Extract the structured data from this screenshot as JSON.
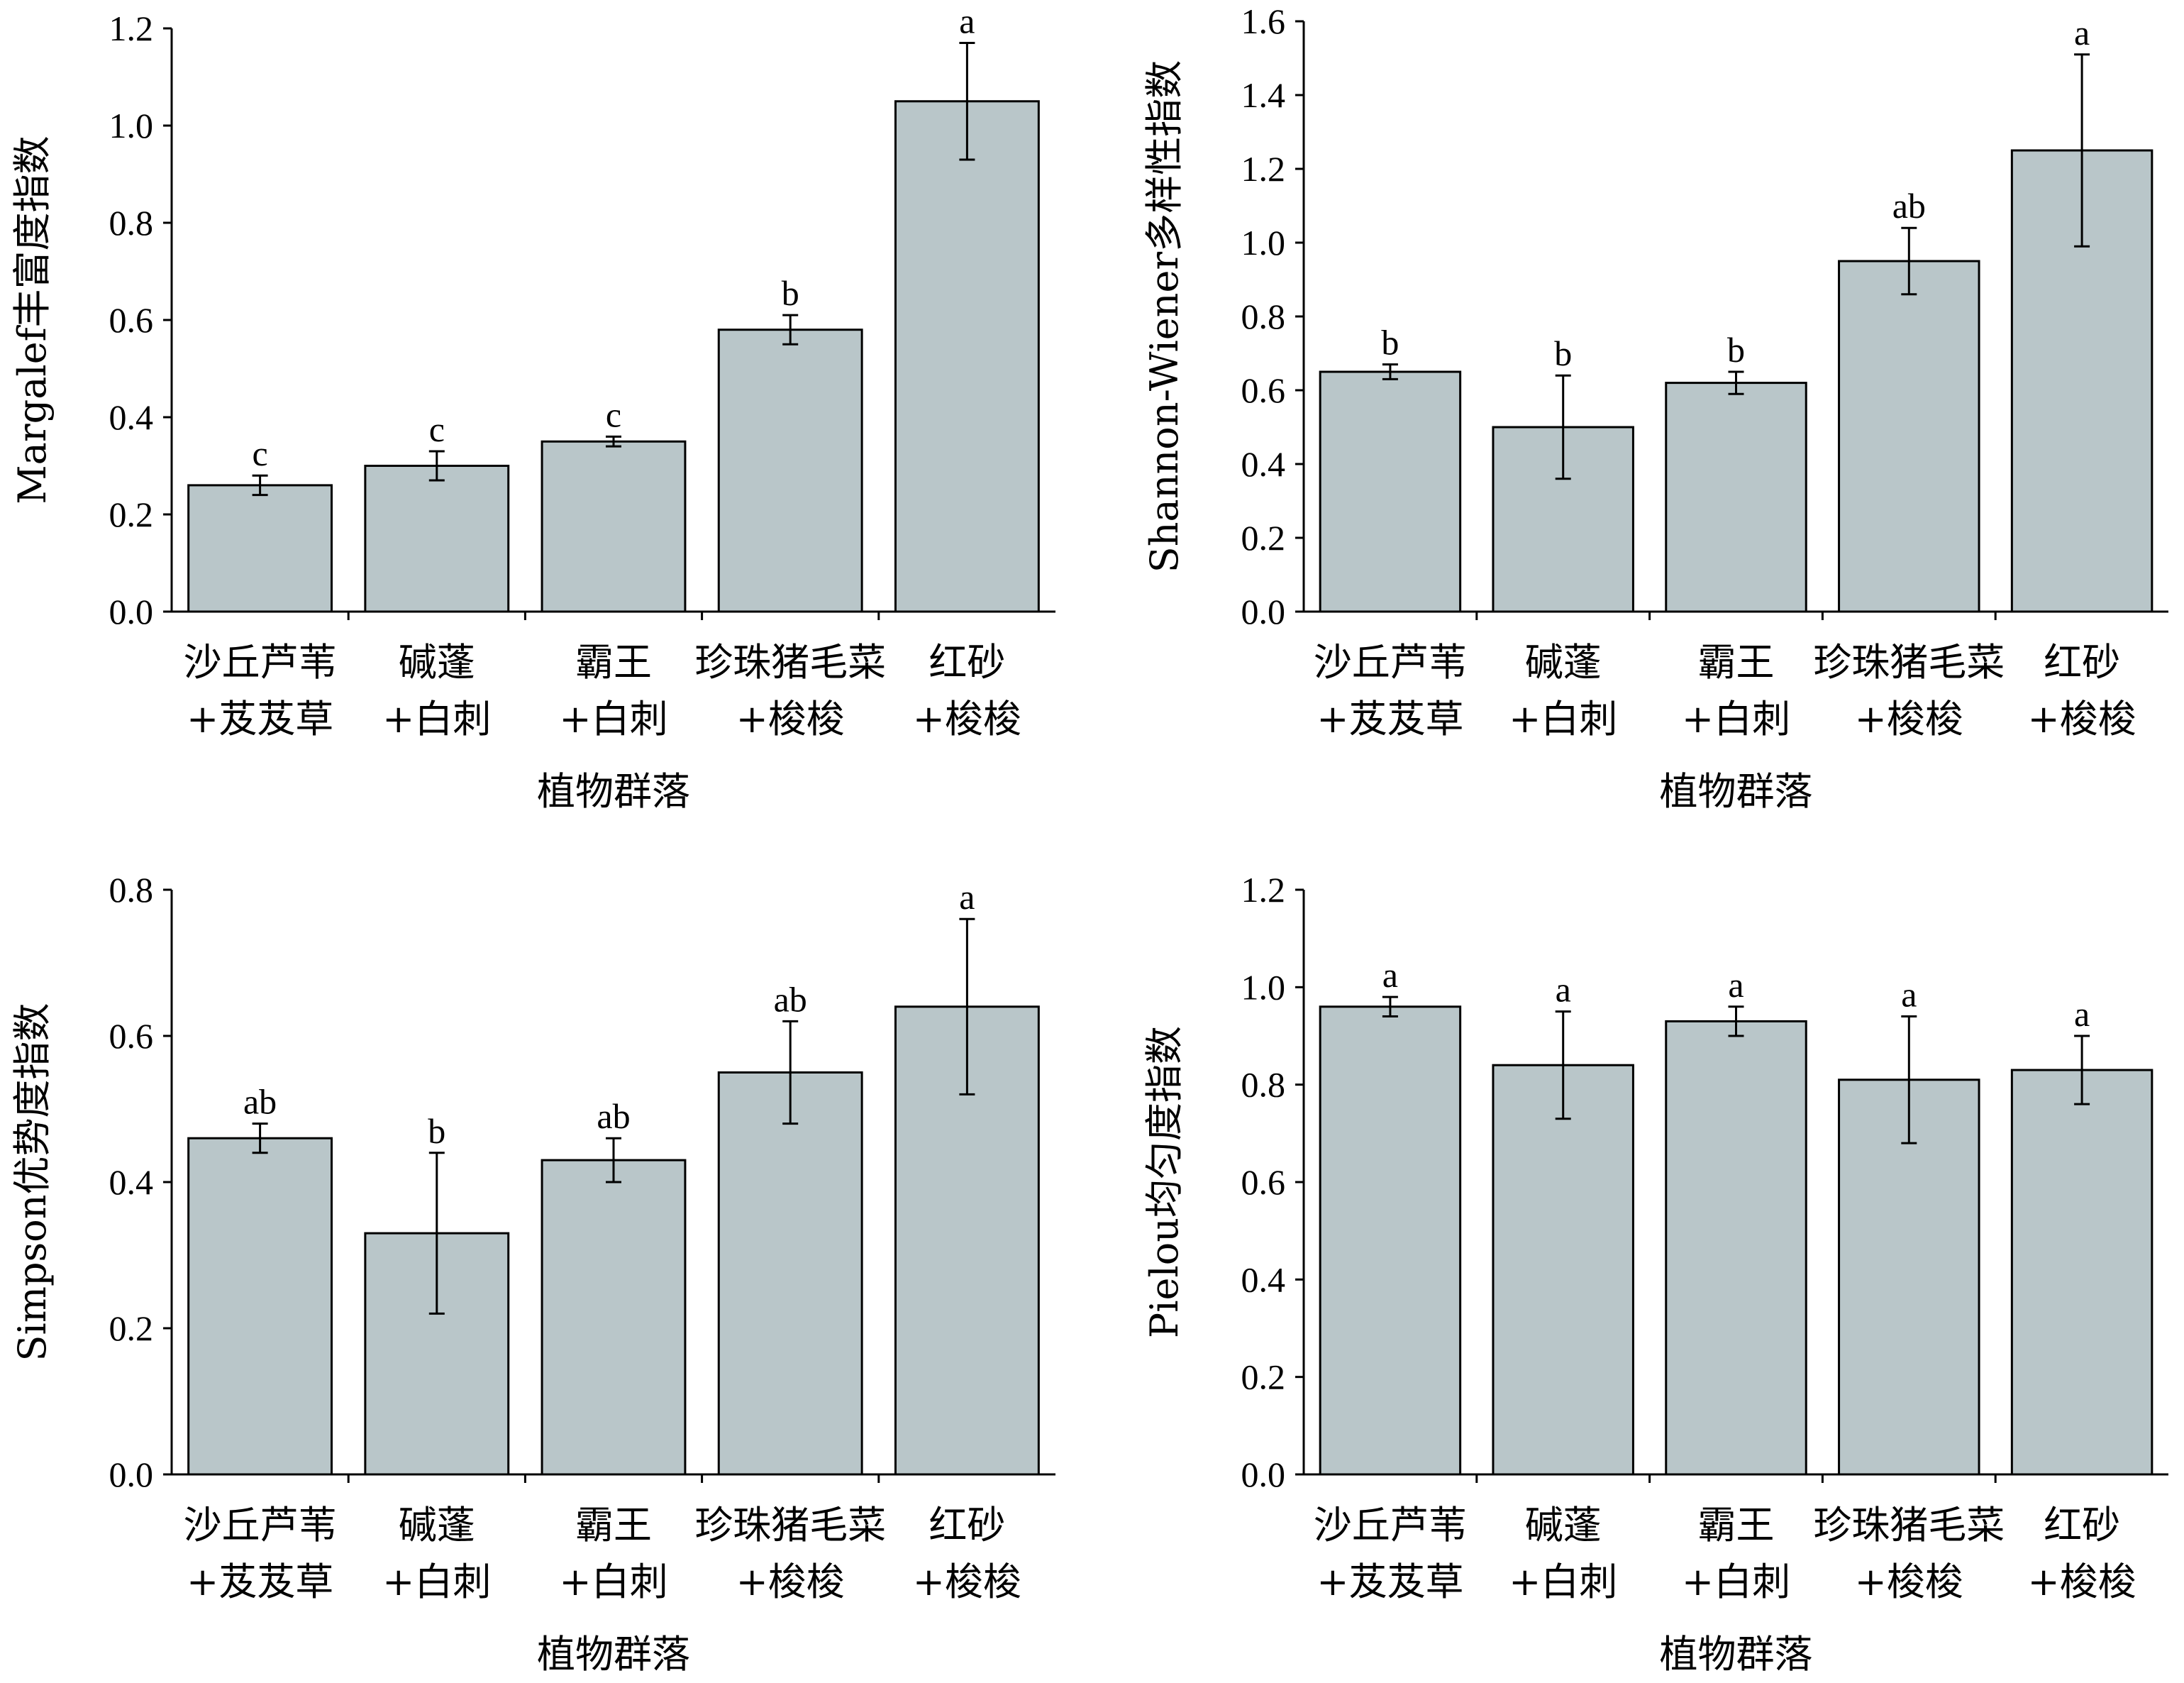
{
  "chart_data": [
    {
      "type": "bar",
      "categories": [
        [
          "沙丘芦苇",
          "+芨芨草"
        ],
        [
          "碱蓬",
          "+白刺"
        ],
        [
          "霸王",
          "+白刺"
        ],
        [
          "珍珠猪毛菜",
          "+梭梭"
        ],
        [
          "红砂",
          "+梭梭"
        ]
      ],
      "values": [
        0.26,
        0.3,
        0.35,
        0.58,
        1.05
      ],
      "errors": [
        0.02,
        0.03,
        0.01,
        0.03,
        0.12
      ],
      "significance": [
        "c",
        "c",
        "c",
        "b",
        "a"
      ],
      "xlabel": "植物群落",
      "ylabel": "Margalef丰富度指数",
      "ylim": [
        0,
        1.2
      ],
      "yticks": [
        "0.0",
        "0.2",
        "0.4",
        "0.6",
        "0.8",
        "1.0",
        "1.2"
      ],
      "bar_color": "#b9c6c9"
    },
    {
      "type": "bar",
      "categories": [
        [
          "沙丘芦苇",
          "+芨芨草"
        ],
        [
          "碱蓬",
          "+白刺"
        ],
        [
          "霸王",
          "+白刺"
        ],
        [
          "珍珠猪毛菜",
          "+梭梭"
        ],
        [
          "红砂",
          "+梭梭"
        ]
      ],
      "values": [
        0.65,
        0.5,
        0.62,
        0.95,
        1.25
      ],
      "errors": [
        0.02,
        0.14,
        0.03,
        0.09,
        0.26
      ],
      "significance": [
        "b",
        "b",
        "b",
        "ab",
        "a"
      ],
      "xlabel": "植物群落",
      "ylabel": "Shannon-Wiener多样性指数",
      "ylim": [
        0,
        1.6
      ],
      "yticks": [
        "0.0",
        "0.2",
        "0.4",
        "0.6",
        "0.8",
        "1.0",
        "1.2",
        "1.4",
        "1.6"
      ],
      "bar_color": "#b9c6c9"
    },
    {
      "type": "bar",
      "categories": [
        [
          "沙丘芦苇",
          "+芨芨草"
        ],
        [
          "碱蓬",
          "+白刺"
        ],
        [
          "霸王",
          "+白刺"
        ],
        [
          "珍珠猪毛菜",
          "+梭梭"
        ],
        [
          "红砂",
          "+梭梭"
        ]
      ],
      "values": [
        0.46,
        0.33,
        0.43,
        0.55,
        0.64
      ],
      "errors": [
        0.02,
        0.11,
        0.03,
        0.07,
        0.12
      ],
      "significance": [
        "ab",
        "b",
        "ab",
        "ab",
        "a"
      ],
      "xlabel": "植物群落",
      "ylabel": "Simpson优势度指数",
      "ylim": [
        0,
        0.8
      ],
      "yticks": [
        "0.0",
        "0.2",
        "0.4",
        "0.6",
        "0.8"
      ],
      "bar_color": "#b9c6c9"
    },
    {
      "type": "bar",
      "categories": [
        [
          "沙丘芦苇",
          "+芨芨草"
        ],
        [
          "碱蓬",
          "+白刺"
        ],
        [
          "霸王",
          "+白刺"
        ],
        [
          "珍珠猪毛菜",
          "+梭梭"
        ],
        [
          "红砂",
          "+梭梭"
        ]
      ],
      "values": [
        0.96,
        0.84,
        0.93,
        0.81,
        0.83
      ],
      "errors": [
        0.02,
        0.11,
        0.03,
        0.13,
        0.07
      ],
      "significance": [
        "a",
        "a",
        "a",
        "a",
        "a"
      ],
      "xlabel": "植物群落",
      "ylabel": "Pielou均匀度指数",
      "ylim": [
        0,
        1.2
      ],
      "yticks": [
        "0.0",
        "0.2",
        "0.4",
        "0.6",
        "0.8",
        "1.0",
        "1.2"
      ],
      "bar_color": "#b9c6c9"
    }
  ]
}
